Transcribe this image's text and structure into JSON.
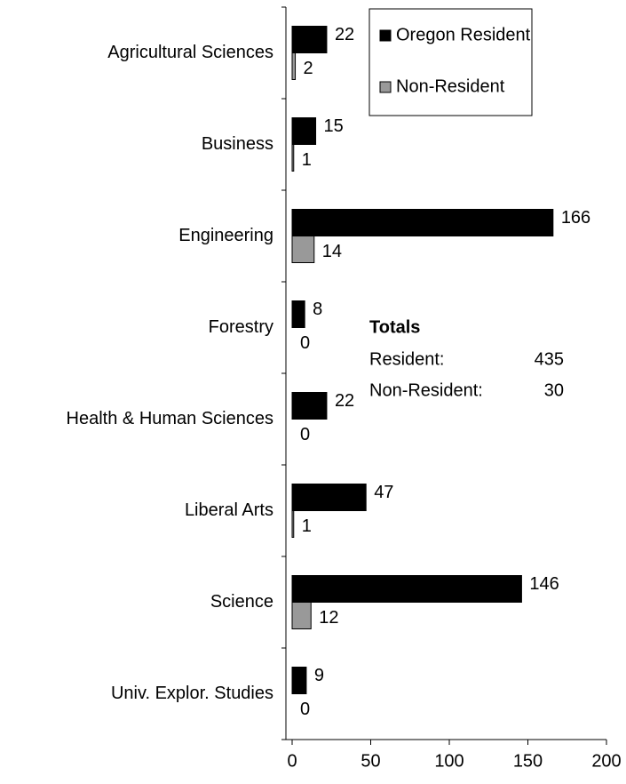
{
  "chart_data": {
    "type": "bar",
    "orientation": "horizontal",
    "categories": [
      "Agricultural Sciences",
      "Business",
      "Engineering",
      "Forestry",
      "Health & Human Sciences",
      "Liberal Arts",
      "Science",
      "Univ. Explor. Studies"
    ],
    "series": [
      {
        "name": "Oregon Resident",
        "color": "#000000",
        "values": [
          22,
          15,
          166,
          8,
          22,
          47,
          146,
          9
        ]
      },
      {
        "name": "Non-Resident",
        "color": "#999999",
        "values": [
          2,
          1,
          14,
          0,
          0,
          1,
          12,
          0
        ]
      }
    ],
    "xlim": [
      0,
      200
    ],
    "xticks": [
      0,
      50,
      100,
      150,
      200
    ],
    "legend": "top-right",
    "annotation": {
      "title": "Totals",
      "rows": [
        [
          "Resident:",
          435
        ],
        [
          "Non-Resident:",
          30
        ]
      ]
    }
  }
}
